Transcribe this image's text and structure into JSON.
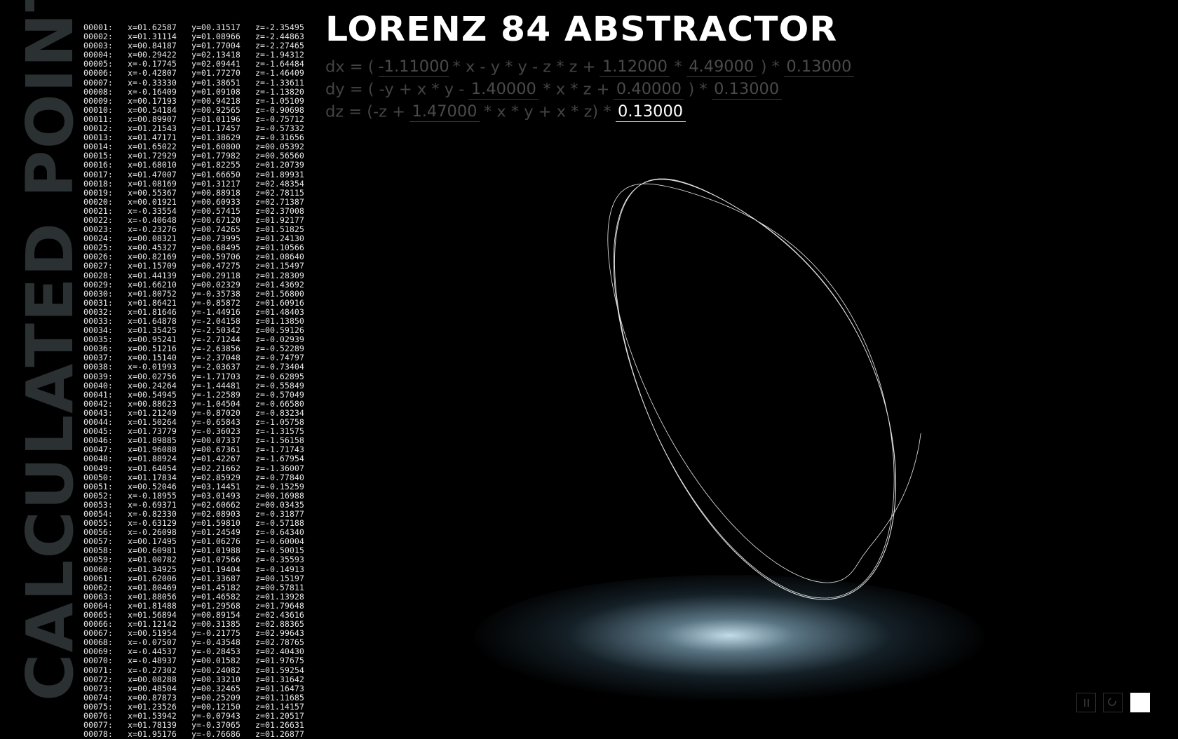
{
  "side_title": "CALCULATED POINTS",
  "app": {
    "title": "LORENZ 84 ABSTRACTOR"
  },
  "equations": {
    "dx": {
      "t1": "dx = (",
      "p1": "-1.11000",
      "t2": "* x - y * y - z * z +",
      "p2": "1.12000",
      "t3": "*",
      "p3": "4.49000",
      "t4": ") *",
      "p4": "0.13000"
    },
    "dy": {
      "t1": "dy = ( -y + x * y -",
      "p1": "1.40000",
      "t2": "* x * z +",
      "p2": "0.40000",
      "t3": ") *",
      "p3": "0.13000"
    },
    "dz": {
      "t1": "dz = (-z +",
      "p1": "1.47000",
      "t2": "* x * y + x * z) *",
      "p2": "0.13000"
    }
  },
  "colors": {
    "background": "#000000",
    "side_title": "#2b3033",
    "formula": "#444444",
    "glow": "#cde8f5"
  },
  "controls": {
    "pause": "pause-icon",
    "reset": "reset-icon",
    "color": "white-square"
  },
  "points": [
    [
      "00001:",
      "x=01.62587",
      "y=00.31517",
      "z=-2.35495"
    ],
    [
      "00002:",
      "x=01.31114",
      "y=01.08966",
      "z=-2.44863"
    ],
    [
      "00003:",
      "x=00.84187",
      "y=01.77004",
      "z=-2.27465"
    ],
    [
      "00004:",
      "x=00.29422",
      "y=02.13418",
      "z=-1.94312"
    ],
    [
      "00005:",
      "x=-0.17745",
      "y=02.09441",
      "z=-1.64484"
    ],
    [
      "00006:",
      "x=-0.42807",
      "y=01.77270",
      "z=-1.46409"
    ],
    [
      "00007:",
      "x=-0.33330",
      "y=01.38651",
      "z=-1.33611"
    ],
    [
      "00008:",
      "x=-0.16409",
      "y=01.09108",
      "z=-1.13820"
    ],
    [
      "00009:",
      "x=00.17193",
      "y=00.94218",
      "z=-1.05109"
    ],
    [
      "00010:",
      "x=00.54184",
      "y=00.92565",
      "z=-0.90698"
    ],
    [
      "00011:",
      "x=00.89907",
      "y=01.01196",
      "z=-0.75712"
    ],
    [
      "00012:",
      "x=01.21543",
      "y=01.17457",
      "z=-0.57332"
    ],
    [
      "00013:",
      "x=01.47171",
      "y=01.38629",
      "z=-0.31656"
    ],
    [
      "00014:",
      "x=01.65022",
      "y=01.60800",
      "z=00.05392"
    ],
    [
      "00015:",
      "x=01.72929",
      "y=01.77982",
      "z=00.56560"
    ],
    [
      "00016:",
      "x=01.68010",
      "y=01.82255",
      "z=01.20739"
    ],
    [
      "00017:",
      "x=01.47007",
      "y=01.66650",
      "z=01.89931"
    ],
    [
      "00018:",
      "x=01.08169",
      "y=01.31217",
      "z=02.48354"
    ],
    [
      "00019:",
      "x=00.55367",
      "y=00.88918",
      "z=02.78115"
    ],
    [
      "00020:",
      "x=00.01921",
      "y=00.60933",
      "z=02.71387"
    ],
    [
      "00021:",
      "x=-0.33554",
      "y=00.57415",
      "z=02.37008"
    ],
    [
      "00022:",
      "x=-0.40648",
      "y=00.67120",
      "z=01.92177"
    ],
    [
      "00023:",
      "x=-0.23276",
      "y=00.74265",
      "z=01.51825"
    ],
    [
      "00024:",
      "x=00.08321",
      "y=00.73995",
      "z=01.24130"
    ],
    [
      "00025:",
      "x=00.45327",
      "y=00.68495",
      "z=01.10566"
    ],
    [
      "00026:",
      "x=00.82169",
      "y=00.59706",
      "z=01.08640"
    ],
    [
      "00027:",
      "x=01.15709",
      "y=00.47275",
      "z=01.15497"
    ],
    [
      "00028:",
      "x=01.44139",
      "y=00.29118",
      "z=01.28309"
    ],
    [
      "00029:",
      "x=01.66210",
      "y=00.02329",
      "z=01.43692"
    ],
    [
      "00030:",
      "x=01.80752",
      "y=-0.35738",
      "z=01.56800"
    ],
    [
      "00031:",
      "x=01.86421",
      "y=-0.85872",
      "z=01.60916"
    ],
    [
      "00032:",
      "x=01.81646",
      "y=-1.44916",
      "z=01.48403"
    ],
    [
      "00033:",
      "x=01.64878",
      "y=-2.04158",
      "z=01.13850"
    ],
    [
      "00034:",
      "x=01.35425",
      "y=-2.50342",
      "z=00.59126"
    ],
    [
      "00035:",
      "x=00.95241",
      "y=-2.71244",
      "z=-0.02939"
    ],
    [
      "00036:",
      "x=00.51216",
      "y=-2.63856",
      "z=-0.52289"
    ],
    [
      "00037:",
      "x=00.15140",
      "y=-2.37048",
      "z=-0.74797"
    ],
    [
      "00038:",
      "x=-0.01993",
      "y=-2.03637",
      "z=-0.73404"
    ],
    [
      "00039:",
      "x=00.02756",
      "y=-1.71703",
      "z=-0.62895"
    ],
    [
      "00040:",
      "x=00.24264",
      "y=-1.44481",
      "z=-0.55849"
    ],
    [
      "00041:",
      "x=00.54945",
      "y=-1.22589",
      "z=-0.57049"
    ],
    [
      "00042:",
      "x=00.88623",
      "y=-1.04504",
      "z=-0.66580"
    ],
    [
      "00043:",
      "x=01.21249",
      "y=-0.87020",
      "z=-0.83234"
    ],
    [
      "00044:",
      "x=01.50264",
      "y=-0.65843",
      "z=-1.05758"
    ],
    [
      "00045:",
      "x=01.73779",
      "y=-0.36023",
      "z=-1.31575"
    ],
    [
      "00046:",
      "x=01.89885",
      "y=00.07337",
      "z=-1.56158"
    ],
    [
      "00047:",
      "x=01.96088",
      "y=00.67361",
      "z=-1.71743"
    ],
    [
      "00048:",
      "x=01.88924",
      "y=01.42267",
      "z=-1.67954"
    ],
    [
      "00049:",
      "x=01.64054",
      "y=02.21662",
      "z=-1.36007"
    ],
    [
      "00050:",
      "x=01.17834",
      "y=02.85929",
      "z=-0.77840"
    ],
    [
      "00051:",
      "x=00.52046",
      "y=03.14451",
      "z=-0.15259"
    ],
    [
      "00052:",
      "x=-0.18955",
      "y=03.01493",
      "z=00.16988"
    ],
    [
      "00053:",
      "x=-0.69371",
      "y=02.60662",
      "z=00.03435"
    ],
    [
      "00054:",
      "x=-0.82330",
      "y=02.08903",
      "z=-0.31877"
    ],
    [
      "00055:",
      "x=-0.63129",
      "y=01.59810",
      "z=-0.57188"
    ],
    [
      "00056:",
      "x=-0.26098",
      "y=01.24549",
      "z=-0.64340"
    ],
    [
      "00057:",
      "x=00.17495",
      "y=01.06276",
      "z=-0.60004"
    ],
    [
      "00058:",
      "x=00.60981",
      "y=01.01988",
      "z=-0.50015"
    ],
    [
      "00059:",
      "x=01.00782",
      "y=01.07566",
      "z=-0.35593"
    ],
    [
      "00060:",
      "x=01.34925",
      "y=01.19404",
      "z=-0.14913"
    ],
    [
      "00061:",
      "x=01.62006",
      "y=01.33687",
      "z=00.15197"
    ],
    [
      "00062:",
      "x=01.80469",
      "y=01.45182",
      "z=00.57811"
    ],
    [
      "00063:",
      "x=01.88056",
      "y=01.46582",
      "z=01.13928"
    ],
    [
      "00064:",
      "x=01.81488",
      "y=01.29568",
      "z=01.79648"
    ],
    [
      "00065:",
      "x=01.56894",
      "y=00.89154",
      "z=02.43616"
    ],
    [
      "00066:",
      "x=01.12142",
      "y=00.31385",
      "z=02.88365"
    ],
    [
      "00067:",
      "x=00.51954",
      "y=-0.21775",
      "z=02.99643"
    ],
    [
      "00068:",
      "x=-0.07507",
      "y=-0.43548",
      "z=02.78765"
    ],
    [
      "00069:",
      "x=-0.44537",
      "y=-0.28453",
      "z=02.40430"
    ],
    [
      "00070:",
      "x=-0.48937",
      "y=00.01582",
      "z=01.97675"
    ],
    [
      "00071:",
      "x=-0.27302",
      "y=00.24082",
      "z=01.59254"
    ],
    [
      "00072:",
      "x=00.08288",
      "y=00.33210",
      "z=01.31642"
    ],
    [
      "00073:",
      "x=00.48504",
      "y=00.32465",
      "z=01.16473"
    ],
    [
      "00074:",
      "x=00.87873",
      "y=00.25209",
      "z=01.11685"
    ],
    [
      "00075:",
      "x=01.23526",
      "y=00.12150",
      "z=01.14157"
    ],
    [
      "00076:",
      "x=01.53942",
      "y=-0.07943",
      "z=01.20517"
    ],
    [
      "00077:",
      "x=01.78139",
      "y=-0.37065",
      "z=01.26631"
    ],
    [
      "00078:",
      "x=01.95176",
      "y=-0.76686",
      "z=01.26877"
    ]
  ]
}
